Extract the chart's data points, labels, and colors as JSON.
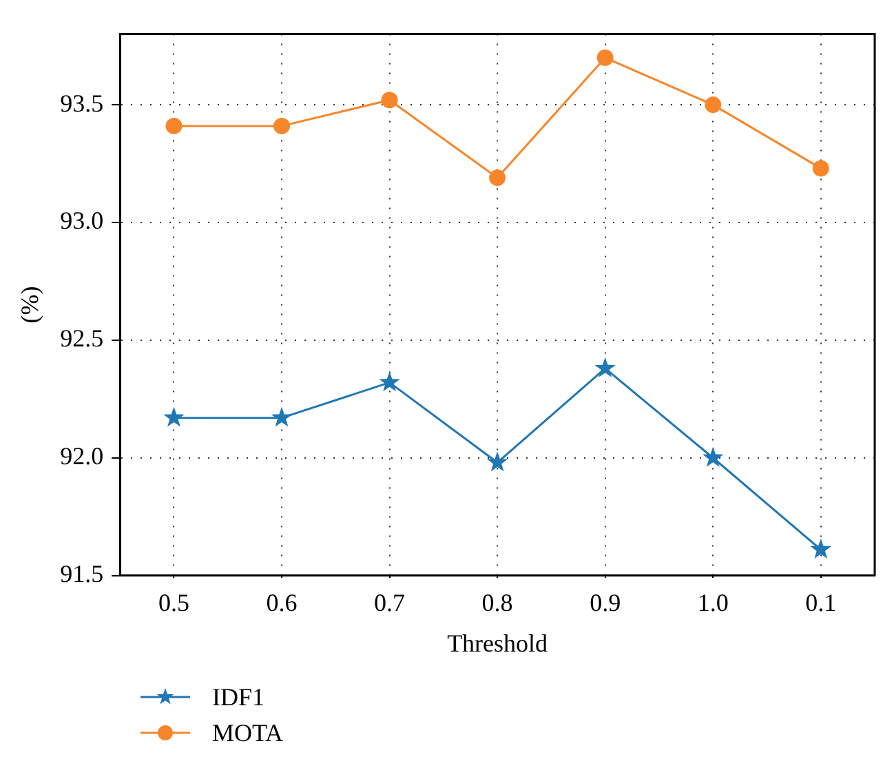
{
  "chart_data": {
    "type": "line",
    "xlabel": "Threshold",
    "ylabel": "(%)",
    "categories": [
      "0.5",
      "0.6",
      "0.7",
      "0.8",
      "0.9",
      "1.0",
      "0.1"
    ],
    "series": [
      {
        "name": "IDF1",
        "color": "#1f77b4",
        "marker": "star",
        "values": [
          92.17,
          92.17,
          92.32,
          91.98,
          92.38,
          92.0,
          91.61
        ]
      },
      {
        "name": "MOTA",
        "color": "#f7862a",
        "marker": "circle",
        "values": [
          93.41,
          93.41,
          93.52,
          93.19,
          93.7,
          93.5,
          93.23
        ]
      }
    ],
    "ylim": [
      91.5,
      93.8
    ],
    "yticks": [
      {
        "value": 91.5,
        "label": "91.5"
      },
      {
        "value": 92,
        "label": "92.0"
      },
      {
        "value": 92.5,
        "label": "92.5"
      },
      {
        "value": 93,
        "label": "93.0"
      },
      {
        "value": 93.5,
        "label": "93.5"
      }
    ],
    "grid": true,
    "legend": "bottom left",
    "line_style": "solid"
  }
}
